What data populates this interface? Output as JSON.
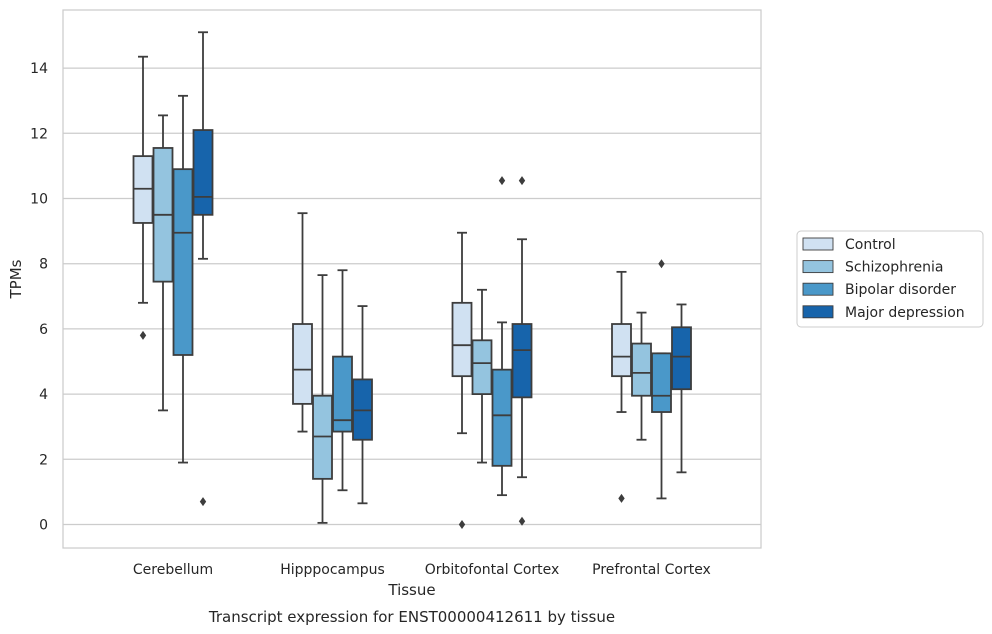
{
  "chart_data": {
    "type": "box",
    "xlabel": "Tissue",
    "ylabel": "TPMs",
    "caption": "Transcript expression for ENST00000412611 by tissue",
    "ylim": [
      -0.7,
      15.8
    ],
    "yticks": [
      0,
      2,
      4,
      6,
      8,
      10,
      12,
      14
    ],
    "categories": [
      "Cerebellum",
      "Hipppocampus",
      "Orbitofontal Cortex",
      "Prefrontal Cortex"
    ],
    "grid": "horizontal",
    "legend_position": "right",
    "series": [
      {
        "name": "Control",
        "color": "#d0e1f2",
        "boxes": [
          {
            "whislo": 6.8,
            "q1": 9.25,
            "med": 10.3,
            "q3": 11.3,
            "whishi": 14.35,
            "fliers": [
              5.8
            ]
          },
          {
            "whislo": 2.85,
            "q1": 3.7,
            "med": 4.75,
            "q3": 6.15,
            "whishi": 9.55,
            "fliers": []
          },
          {
            "whislo": 2.8,
            "q1": 4.55,
            "med": 5.5,
            "q3": 6.8,
            "whishi": 8.95,
            "fliers": [
              0.0
            ]
          },
          {
            "whislo": 3.45,
            "q1": 4.55,
            "med": 5.15,
            "q3": 6.15,
            "whishi": 7.75,
            "fliers": [
              0.8
            ]
          }
        ]
      },
      {
        "name": "Schizophrenia",
        "color": "#94c4df",
        "boxes": [
          {
            "whislo": 3.5,
            "q1": 7.45,
            "med": 9.5,
            "q3": 11.55,
            "whishi": 12.55,
            "fliers": []
          },
          {
            "whislo": 0.05,
            "q1": 1.4,
            "med": 2.7,
            "q3": 3.95,
            "whishi": 7.65,
            "fliers": []
          },
          {
            "whislo": 1.9,
            "q1": 4.0,
            "med": 4.95,
            "q3": 5.65,
            "whishi": 7.2,
            "fliers": []
          },
          {
            "whislo": 2.6,
            "q1": 3.95,
            "med": 4.65,
            "q3": 5.55,
            "whishi": 6.5,
            "fliers": []
          }
        ]
      },
      {
        "name": "Bipolar disorder",
        "color": "#4a98c9",
        "boxes": [
          {
            "whislo": 1.9,
            "q1": 5.2,
            "med": 8.95,
            "q3": 10.9,
            "whishi": 13.15,
            "fliers": []
          },
          {
            "whislo": 1.05,
            "q1": 2.85,
            "med": 3.2,
            "q3": 5.15,
            "whishi": 7.8,
            "fliers": []
          },
          {
            "whislo": 0.9,
            "q1": 1.8,
            "med": 3.35,
            "q3": 4.75,
            "whishi": 6.2,
            "fliers": [
              10.55
            ]
          },
          {
            "whislo": 0.8,
            "q1": 3.45,
            "med": 3.95,
            "q3": 5.25,
            "whishi": 5.25,
            "fliers": [
              8.0
            ]
          }
        ]
      },
      {
        "name": "Major depression",
        "color": "#1764ab",
        "boxes": [
          {
            "whislo": 8.15,
            "q1": 9.5,
            "med": 10.05,
            "q3": 12.1,
            "whishi": 15.1,
            "fliers": [
              0.7
            ]
          },
          {
            "whislo": 0.65,
            "q1": 2.6,
            "med": 3.5,
            "q3": 4.45,
            "whishi": 6.7,
            "fliers": []
          },
          {
            "whislo": 1.45,
            "q1": 3.9,
            "med": 5.35,
            "q3": 6.15,
            "whishi": 8.75,
            "fliers": [
              0.1,
              10.55
            ]
          },
          {
            "whislo": 1.6,
            "q1": 4.15,
            "med": 5.15,
            "q3": 6.05,
            "whishi": 6.75,
            "fliers": []
          }
        ]
      }
    ]
  }
}
